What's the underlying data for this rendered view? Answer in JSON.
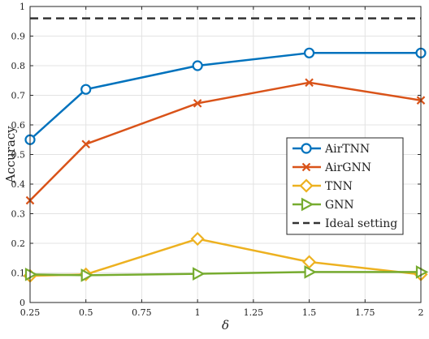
{
  "chart_data": {
    "type": "line",
    "xlabel": "δ",
    "ylabel": "Accuracy",
    "x": [
      0.25,
      0.5,
      1,
      1.5,
      2
    ],
    "xlim": [
      0.25,
      2
    ],
    "ylim": [
      0,
      1
    ],
    "xticks": [
      "0.25",
      "0.5",
      "0.75",
      "1",
      "1.25",
      "1.5",
      "1.75",
      "2"
    ],
    "yticks": [
      "0",
      "0.1",
      "0.2",
      "0.3",
      "0.4",
      "0.5",
      "0.6",
      "0.7",
      "0.8",
      "0.9",
      "1"
    ],
    "grid": true,
    "legend_position": "right-middle",
    "series": [
      {
        "name": "AirTNN",
        "values": [
          0.55,
          0.72,
          0.8,
          0.843,
          0.843
        ],
        "color": "#0072BD",
        "marker": "circle"
      },
      {
        "name": "AirGNN",
        "values": [
          0.345,
          0.535,
          0.673,
          0.743,
          0.683
        ],
        "color": "#D95319",
        "marker": "x"
      },
      {
        "name": "TNN",
        "values": [
          0.09,
          0.095,
          0.215,
          0.137,
          0.095
        ],
        "color": "#EDB120",
        "marker": "diamond"
      },
      {
        "name": "GNN",
        "values": [
          0.095,
          0.092,
          0.097,
          0.103,
          0.103
        ],
        "color": "#77AC30",
        "marker": "triangle-right"
      }
    ],
    "reference_line": {
      "name": "Ideal setting",
      "value": 0.96,
      "color": "#333333",
      "style": "dashed"
    }
  }
}
